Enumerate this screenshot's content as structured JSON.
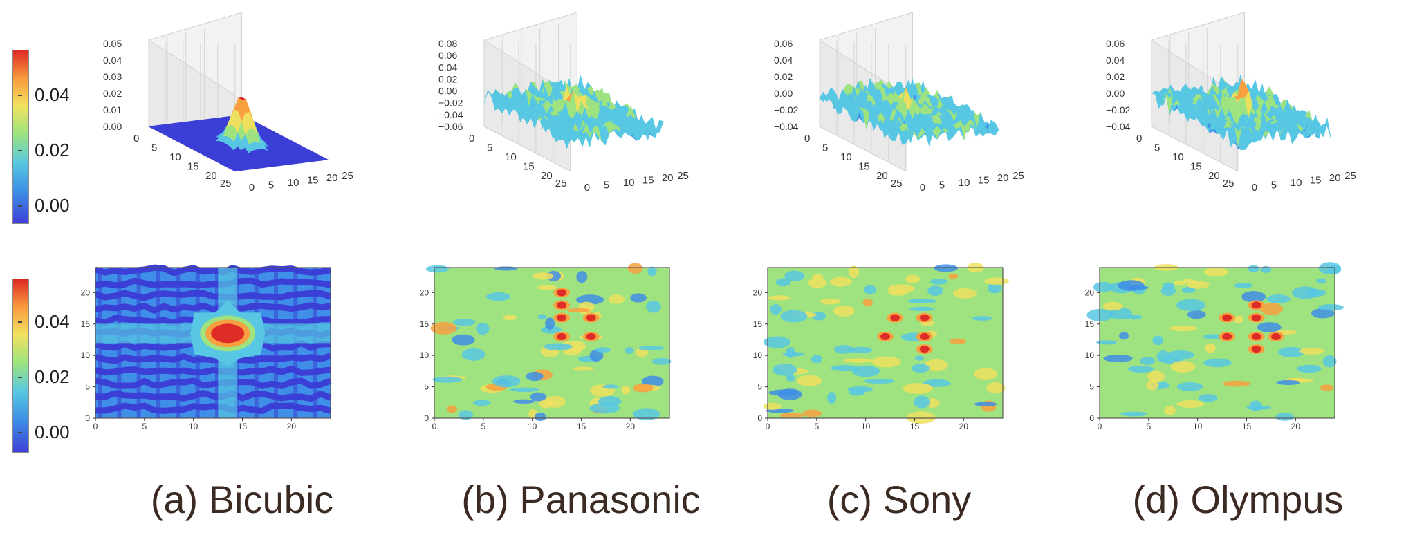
{
  "colorbars": [
    {
      "ticks": [
        "0.04",
        "0.02",
        "0.00"
      ]
    },
    {
      "ticks": [
        "0.04",
        "0.02",
        "0.00"
      ]
    }
  ],
  "colors": {
    "c0": "#3b3fd6",
    "c1": "#3f8ee8",
    "c2": "#57c7e3",
    "c3": "#9ee37f",
    "c4": "#eee05e",
    "c5": "#f8a040",
    "c6": "#de2b27"
  },
  "panels": [
    {
      "caption": "(a) Bicubic",
      "peak_x": 13.5,
      "peak_y": 13.5
    },
    {
      "caption": "(b) Panasonic",
      "peak_x": 13,
      "peak_y": 16
    },
    {
      "caption": "(c) Sony",
      "peak_x": 16,
      "peak_y": 13
    },
    {
      "caption": "(d) Olympus",
      "peak_x": 16,
      "peak_y": 16
    }
  ],
  "chart_data": [
    {
      "type": "surface",
      "panel": "(a) Bicubic",
      "x_ticks": [
        "0",
        "5",
        "10",
        "15",
        "20",
        "25"
      ],
      "y_ticks": [
        "0",
        "5",
        "10",
        "15",
        "20",
        "25"
      ],
      "z_ticks": [
        "0.00",
        "0.01",
        "0.02",
        "0.03",
        "0.04",
        "0.05"
      ],
      "xlim": [
        0,
        25
      ],
      "ylim": [
        0,
        25
      ],
      "zlim": [
        0,
        0.05
      ]
    },
    {
      "type": "surface",
      "panel": "(b) Panasonic",
      "x_ticks": [
        "0",
        "5",
        "10",
        "15",
        "20",
        "25"
      ],
      "y_ticks": [
        "0",
        "5",
        "10",
        "15",
        "20",
        "25"
      ],
      "z_ticks": [
        "−0.06",
        "−0.04",
        "−0.02",
        "0.00",
        "0.02",
        "0.04",
        "0.06",
        "0.08"
      ],
      "xlim": [
        0,
        25
      ],
      "ylim": [
        0,
        25
      ],
      "zlim": [
        -0.06,
        0.08
      ]
    },
    {
      "type": "surface",
      "panel": "(c) Sony",
      "x_ticks": [
        "0",
        "5",
        "10",
        "15",
        "20",
        "25"
      ],
      "y_ticks": [
        "0",
        "5",
        "10",
        "15",
        "20",
        "25"
      ],
      "z_ticks": [
        "−0.04",
        "−0.02",
        "0.00",
        "0.02",
        "0.04",
        "0.06"
      ],
      "xlim": [
        0,
        25
      ],
      "ylim": [
        0,
        25
      ],
      "zlim": [
        -0.04,
        0.06
      ]
    },
    {
      "type": "surface",
      "panel": "(d) Olympus",
      "x_ticks": [
        "0",
        "5",
        "10",
        "15",
        "20",
        "25"
      ],
      "y_ticks": [
        "0",
        "5",
        "10",
        "15",
        "20",
        "25"
      ],
      "z_ticks": [
        "−0.04",
        "−0.02",
        "0.00",
        "0.02",
        "0.04",
        "0.06"
      ],
      "xlim": [
        0,
        25
      ],
      "ylim": [
        0,
        25
      ],
      "zlim": [
        -0.04,
        0.06
      ]
    },
    {
      "type": "heatmap",
      "panel": "(a) Bicubic",
      "x_ticks": [
        "0",
        "5",
        "10",
        "15",
        "20"
      ],
      "y_ticks": [
        "0",
        "5",
        "10",
        "15",
        "20"
      ],
      "xlim": [
        0,
        24
      ],
      "ylim": [
        0,
        24
      ]
    },
    {
      "type": "heatmap",
      "panel": "(b) Panasonic",
      "x_ticks": [
        "0",
        "5",
        "10",
        "15",
        "20"
      ],
      "y_ticks": [
        "0",
        "5",
        "10",
        "15",
        "20"
      ],
      "xlim": [
        0,
        24
      ],
      "ylim": [
        0,
        24
      ],
      "hotspots": [
        [
          13,
          16
        ],
        [
          16,
          16
        ],
        [
          13,
          13
        ],
        [
          16,
          13
        ],
        [
          13,
          18
        ],
        [
          13,
          20
        ]
      ]
    },
    {
      "type": "heatmap",
      "panel": "(c) Sony",
      "x_ticks": [
        "0",
        "5",
        "10",
        "15",
        "20"
      ],
      "y_ticks": [
        "0",
        "5",
        "10",
        "15",
        "20"
      ],
      "xlim": [
        0,
        24
      ],
      "ylim": [
        0,
        24
      ],
      "hotspots": [
        [
          13,
          16
        ],
        [
          16,
          16
        ],
        [
          16,
          13
        ],
        [
          12,
          13
        ],
        [
          16,
          11
        ]
      ]
    },
    {
      "type": "heatmap",
      "panel": "(d) Olympus",
      "x_ticks": [
        "0",
        "5",
        "10",
        "15",
        "20"
      ],
      "y_ticks": [
        "0",
        "5",
        "10",
        "15",
        "20"
      ],
      "xlim": [
        0,
        24
      ],
      "ylim": [
        0,
        24
      ],
      "hotspots": [
        [
          13,
          16
        ],
        [
          16,
          16
        ],
        [
          13,
          13
        ],
        [
          16,
          13
        ],
        [
          18,
          13
        ],
        [
          16,
          18
        ],
        [
          16,
          11
        ]
      ]
    }
  ]
}
